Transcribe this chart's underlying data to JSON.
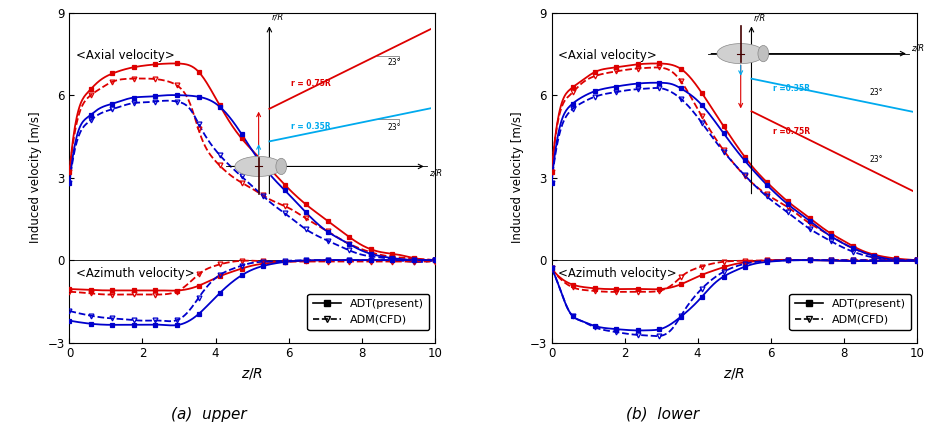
{
  "xlim": [
    0,
    10
  ],
  "ylim": [
    -3,
    9
  ],
  "yticks": [
    -3,
    0,
    3,
    6,
    9
  ],
  "xticks": [
    0,
    2,
    4,
    6,
    8,
    10
  ],
  "xlabel": "z/R",
  "ylabel": "Induced velocity [m/s]",
  "panel_a_title": "(a)  upper",
  "panel_b_title": "(b)  lower",
  "red_color": "#dd0000",
  "blue_color": "#0000cc",
  "cyan_color": "#00aaee",
  "axial_label": "<Axial velocity>",
  "azimuth_label": "<Azimuth velocity>",
  "legend_solid": "ADT(present)",
  "legend_dashed": "ADM(CFD)",
  "panel_a": {
    "ax_r075_adt_x": [
      0.0,
      0.2,
      0.5,
      0.8,
      1.2,
      1.7,
      2.2,
      2.7,
      3.0,
      3.5,
      4.0,
      4.5,
      5.0,
      5.5,
      6.0,
      6.5,
      7.0,
      7.5,
      8.0,
      8.5,
      9.0,
      9.5,
      10.0
    ],
    "ax_r075_adt_y": [
      3.2,
      5.2,
      6.1,
      6.5,
      6.8,
      7.0,
      7.1,
      7.15,
      7.15,
      6.9,
      5.9,
      4.8,
      4.0,
      3.3,
      2.6,
      2.0,
      1.5,
      1.0,
      0.55,
      0.3,
      0.2,
      0.05,
      0.0
    ],
    "ax_r075_adm_x": [
      0.0,
      0.2,
      0.5,
      0.8,
      1.2,
      1.7,
      2.2,
      2.7,
      3.0,
      3.3,
      3.6,
      4.0,
      4.5,
      5.0,
      5.5,
      6.0,
      6.5,
      7.0,
      7.5,
      8.0,
      8.5,
      9.0,
      10.0
    ],
    "ax_r075_adm_y": [
      3.2,
      5.0,
      5.9,
      6.2,
      6.5,
      6.6,
      6.6,
      6.5,
      6.3,
      5.7,
      4.5,
      3.6,
      3.0,
      2.6,
      2.2,
      1.9,
      1.5,
      1.1,
      0.7,
      0.4,
      0.2,
      0.1,
      0.0
    ],
    "ax_r035_adt_x": [
      0.0,
      0.2,
      0.5,
      0.8,
      1.2,
      1.7,
      2.2,
      2.7,
      3.0,
      3.5,
      4.0,
      4.5,
      5.0,
      5.5,
      6.0,
      6.5,
      7.0,
      7.5,
      8.0,
      8.5,
      9.0,
      9.5,
      10.0
    ],
    "ax_r035_adt_y": [
      2.8,
      4.5,
      5.2,
      5.5,
      5.7,
      5.9,
      5.95,
      6.0,
      6.0,
      5.95,
      5.7,
      5.0,
      4.0,
      3.1,
      2.4,
      1.7,
      1.1,
      0.7,
      0.35,
      0.15,
      0.05,
      0.0,
      0.0
    ],
    "ax_r035_adm_x": [
      0.0,
      0.2,
      0.5,
      0.8,
      1.2,
      1.7,
      2.2,
      2.7,
      3.0,
      3.3,
      3.6,
      4.0,
      4.5,
      5.0,
      5.5,
      6.0,
      6.5,
      7.0,
      7.5,
      8.0,
      8.5,
      9.0,
      10.0
    ],
    "ax_r035_adm_y": [
      2.8,
      4.3,
      5.0,
      5.3,
      5.5,
      5.7,
      5.75,
      5.8,
      5.75,
      5.5,
      4.8,
      4.0,
      3.3,
      2.7,
      2.1,
      1.6,
      1.1,
      0.75,
      0.45,
      0.2,
      0.1,
      0.0,
      0.0
    ],
    "az_r075_adt_x": [
      0.0,
      0.5,
      1.0,
      1.5,
      2.0,
      2.5,
      3.0,
      3.5,
      4.0,
      4.5,
      5.0,
      5.5,
      6.0,
      6.5,
      7.0,
      8.0,
      9.0,
      10.0
    ],
    "az_r075_adt_y": [
      -1.05,
      -1.08,
      -1.1,
      -1.1,
      -1.1,
      -1.1,
      -1.1,
      -0.95,
      -0.65,
      -0.4,
      -0.2,
      -0.1,
      -0.05,
      -0.02,
      0.0,
      0.0,
      0.0,
      0.0
    ],
    "az_r075_adm_x": [
      0.0,
      0.5,
      1.0,
      1.5,
      2.0,
      2.5,
      3.0,
      3.3,
      3.6,
      4.0,
      4.5,
      5.0,
      5.5,
      6.0,
      7.0,
      8.0,
      9.0,
      10.0
    ],
    "az_r075_adm_y": [
      -1.15,
      -1.2,
      -1.25,
      -1.25,
      -1.25,
      -1.25,
      -1.1,
      -0.8,
      -0.45,
      -0.2,
      -0.05,
      -0.02,
      -0.05,
      -0.05,
      -0.05,
      -0.05,
      -0.05,
      -0.05
    ],
    "az_r035_adt_x": [
      0.0,
      0.5,
      1.0,
      1.5,
      2.0,
      2.5,
      3.0,
      3.5,
      4.0,
      4.5,
      5.0,
      5.5,
      6.0,
      7.0,
      8.0,
      9.0,
      10.0
    ],
    "az_r035_adt_y": [
      -2.2,
      -2.3,
      -2.35,
      -2.35,
      -2.35,
      -2.35,
      -2.35,
      -2.0,
      -1.35,
      -0.75,
      -0.35,
      -0.15,
      -0.05,
      0.0,
      0.0,
      0.0,
      0.0
    ],
    "az_r035_adm_x": [
      0.0,
      0.5,
      1.0,
      1.5,
      2.0,
      2.5,
      3.0,
      3.3,
      3.6,
      4.0,
      4.5,
      5.0,
      5.5,
      6.0,
      7.0,
      8.0,
      9.0,
      10.0
    ],
    "az_r035_adm_y": [
      -1.85,
      -2.0,
      -2.1,
      -2.15,
      -2.2,
      -2.2,
      -2.15,
      -1.8,
      -1.25,
      -0.65,
      -0.3,
      -0.1,
      -0.05,
      -0.02,
      0.0,
      0.0,
      0.0,
      0.0
    ]
  },
  "panel_b": {
    "ax_r075_adt_x": [
      0.0,
      0.2,
      0.5,
      0.8,
      1.2,
      1.7,
      2.2,
      2.7,
      3.0,
      3.3,
      3.6,
      4.0,
      4.5,
      5.0,
      5.5,
      6.0,
      6.5,
      7.0,
      7.5,
      8.0,
      8.5,
      9.0,
      9.5,
      10.0
    ],
    "ax_r075_adt_y": [
      3.2,
      5.3,
      6.2,
      6.5,
      6.85,
      7.0,
      7.1,
      7.15,
      7.15,
      7.1,
      6.9,
      6.3,
      5.3,
      4.3,
      3.4,
      2.7,
      2.1,
      1.6,
      1.1,
      0.7,
      0.35,
      0.15,
      0.05,
      0.0
    ],
    "ax_r075_adm_x": [
      0.0,
      0.2,
      0.5,
      0.8,
      1.2,
      1.7,
      2.2,
      2.7,
      3.0,
      3.3,
      3.6,
      4.0,
      4.5,
      5.0,
      5.5,
      6.0,
      6.5,
      7.0,
      7.5,
      8.0,
      8.5,
      9.0,
      10.0
    ],
    "ax_r075_adm_y": [
      3.2,
      5.2,
      6.0,
      6.4,
      6.7,
      6.85,
      6.95,
      7.0,
      7.0,
      6.85,
      6.4,
      5.5,
      4.4,
      3.5,
      2.8,
      2.3,
      1.9,
      1.4,
      1.0,
      0.6,
      0.3,
      0.1,
      0.0
    ],
    "ax_r035_adt_x": [
      0.0,
      0.2,
      0.5,
      0.8,
      1.2,
      1.7,
      2.2,
      2.7,
      3.0,
      3.3,
      3.6,
      4.0,
      4.5,
      5.0,
      5.5,
      6.0,
      6.5,
      7.0,
      7.5,
      8.0,
      8.5,
      9.0,
      9.5,
      10.0
    ],
    "ax_r035_adt_y": [
      2.8,
      4.7,
      5.6,
      5.9,
      6.15,
      6.3,
      6.4,
      6.45,
      6.45,
      6.4,
      6.2,
      5.8,
      5.0,
      4.1,
      3.3,
      2.6,
      2.0,
      1.5,
      1.0,
      0.6,
      0.3,
      0.1,
      0.0,
      0.0
    ],
    "ax_r035_adm_x": [
      0.0,
      0.2,
      0.5,
      0.8,
      1.2,
      1.7,
      2.2,
      2.7,
      3.0,
      3.3,
      3.6,
      4.0,
      4.5,
      5.0,
      5.5,
      6.0,
      6.5,
      7.0,
      7.5,
      8.0,
      8.5,
      9.0,
      10.0
    ],
    "ax_r035_adm_y": [
      2.8,
      4.5,
      5.4,
      5.7,
      5.95,
      6.1,
      6.2,
      6.25,
      6.25,
      6.1,
      5.8,
      5.2,
      4.3,
      3.5,
      2.8,
      2.2,
      1.7,
      1.2,
      0.8,
      0.45,
      0.2,
      0.05,
      0.0
    ],
    "az_r075_adt_x": [
      0.0,
      0.3,
      0.6,
      1.0,
      1.5,
      2.0,
      2.5,
      3.0,
      3.5,
      4.0,
      4.5,
      5.0,
      5.5,
      6.0,
      7.0,
      8.0,
      9.0,
      10.0
    ],
    "az_r075_adt_y": [
      -0.3,
      -0.7,
      -0.9,
      -1.0,
      -1.05,
      -1.05,
      -1.05,
      -1.05,
      -0.9,
      -0.6,
      -0.35,
      -0.15,
      -0.05,
      0.0,
      0.0,
      -0.02,
      -0.02,
      -0.02
    ],
    "az_r075_adm_x": [
      0.0,
      0.3,
      0.6,
      1.0,
      1.5,
      2.0,
      2.5,
      3.0,
      3.3,
      3.6,
      4.0,
      4.5,
      5.0,
      5.5,
      6.0,
      7.0,
      8.0,
      9.0,
      10.0
    ],
    "az_r075_adm_y": [
      -0.3,
      -0.75,
      -1.0,
      -1.1,
      -1.15,
      -1.15,
      -1.15,
      -1.1,
      -0.9,
      -0.55,
      -0.28,
      -0.1,
      -0.03,
      -0.02,
      0.0,
      0.0,
      0.0,
      0.0,
      0.0
    ],
    "az_r035_adt_x": [
      0.0,
      0.3,
      0.5,
      0.8,
      1.2,
      1.7,
      2.2,
      2.7,
      3.0,
      3.5,
      4.0,
      4.5,
      5.0,
      5.5,
      6.0,
      7.0,
      8.0,
      9.0,
      10.0
    ],
    "az_r035_adt_y": [
      -0.3,
      -1.3,
      -1.9,
      -2.2,
      -2.4,
      -2.5,
      -2.55,
      -2.55,
      -2.5,
      -2.1,
      -1.5,
      -0.8,
      -0.4,
      -0.15,
      -0.05,
      0.0,
      -0.03,
      -0.03,
      -0.03
    ],
    "az_r035_adm_x": [
      0.0,
      0.3,
      0.5,
      0.8,
      1.2,
      1.7,
      2.2,
      2.7,
      3.0,
      3.3,
      3.6,
      4.0,
      4.5,
      5.0,
      5.5,
      6.0,
      7.0,
      8.0,
      9.0,
      10.0
    ],
    "az_r035_adm_y": [
      -0.3,
      -1.3,
      -1.9,
      -2.2,
      -2.45,
      -2.6,
      -2.7,
      -2.75,
      -2.75,
      -2.5,
      -1.9,
      -1.2,
      -0.6,
      -0.25,
      -0.08,
      -0.02,
      0.0,
      0.0,
      0.0,
      0.0
    ]
  }
}
